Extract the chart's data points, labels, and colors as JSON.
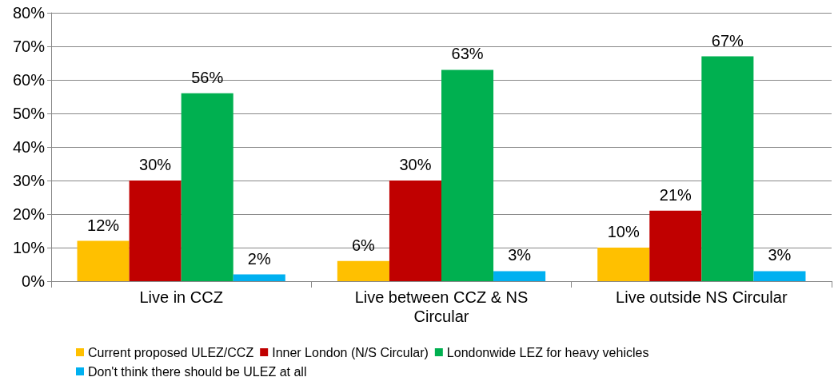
{
  "chart_data": {
    "type": "bar",
    "categories": [
      "Live in CCZ",
      "Live between CCZ & NS\nCircular",
      "Live outside NS Circular"
    ],
    "series": [
      {
        "name": "Current proposed ULEZ/CCZ",
        "color": "#ffc000",
        "values": [
          12,
          6,
          10
        ],
        "value_labels": [
          "12%",
          "6%",
          "10%"
        ]
      },
      {
        "name": "Inner London (N/S Circular)",
        "color": "#c00000",
        "values": [
          30,
          30,
          21
        ],
        "value_labels": [
          "30%",
          "30%",
          "21%"
        ]
      },
      {
        "name": "Londonwide LEZ for heavy vehicles",
        "color": "#00b050",
        "values": [
          56,
          63,
          67
        ],
        "value_labels": [
          "56%",
          "63%",
          "67%"
        ]
      },
      {
        "name": "Don't think there should be ULEZ at all",
        "color": "#00b0f0",
        "values": [
          2,
          3,
          3
        ],
        "value_labels": [
          "2%",
          "3%",
          "3%"
        ]
      }
    ],
    "ylim": [
      0,
      80
    ],
    "yticks": [
      {
        "value": 0,
        "label": "0%"
      },
      {
        "value": 10,
        "label": "10%"
      },
      {
        "value": 20,
        "label": "20%"
      },
      {
        "value": 30,
        "label": "30%"
      },
      {
        "value": 40,
        "label": "40%"
      },
      {
        "value": 50,
        "label": "50%"
      },
      {
        "value": 60,
        "label": "60%"
      },
      {
        "value": 70,
        "label": "70%"
      },
      {
        "value": 80,
        "label": "80%"
      }
    ],
    "grid": "y",
    "legend": "bottom"
  }
}
